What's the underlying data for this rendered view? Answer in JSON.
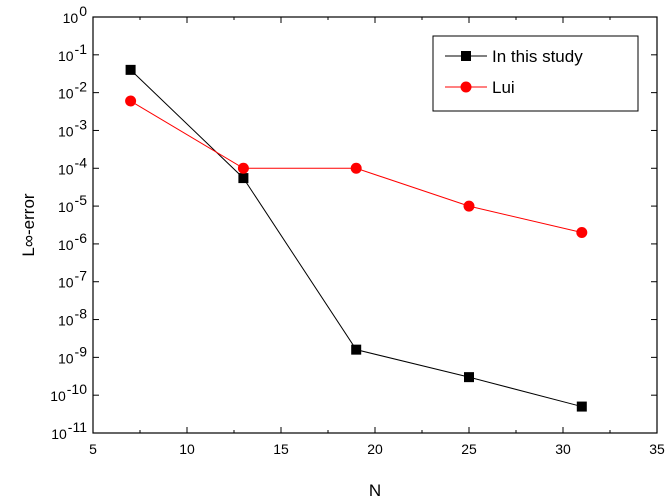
{
  "chart_data": {
    "type": "line",
    "xlabel": "N",
    "ylabel": "L∞-error",
    "xlim": [
      5,
      35
    ],
    "ylim": [
      1e-11,
      1
    ],
    "yscale": "log",
    "x_ticks": [
      "5",
      "10",
      "15",
      "20",
      "25",
      "30",
      "35"
    ],
    "y_ticks": [
      {
        "base": "10",
        "exp": "0"
      },
      {
        "base": "10",
        "exp": "-1"
      },
      {
        "base": "10",
        "exp": "-2"
      },
      {
        "base": "10",
        "exp": "-3"
      },
      {
        "base": "10",
        "exp": "-4"
      },
      {
        "base": "10",
        "exp": "-5"
      },
      {
        "base": "10",
        "exp": "-6"
      },
      {
        "base": "10",
        "exp": "-7"
      },
      {
        "base": "10",
        "exp": "-8"
      },
      {
        "base": "10",
        "exp": "-9"
      },
      {
        "base": "10",
        "exp": "-10"
      },
      {
        "base": "10",
        "exp": "-11"
      }
    ],
    "grid": false,
    "legend_position": "top-right",
    "series": [
      {
        "name": "In this study",
        "color": "#000000",
        "marker": "square",
        "x": [
          7,
          13,
          19,
          25,
          31
        ],
        "y": [
          0.04,
          5.5e-05,
          1.6e-09,
          3e-10,
          5e-11
        ]
      },
      {
        "name": "Lui",
        "color": "#ff0000",
        "marker": "circle",
        "x": [
          7,
          13,
          19,
          25,
          31
        ],
        "y": [
          0.006,
          0.0001,
          0.0001,
          1e-05,
          2e-06
        ]
      }
    ]
  }
}
